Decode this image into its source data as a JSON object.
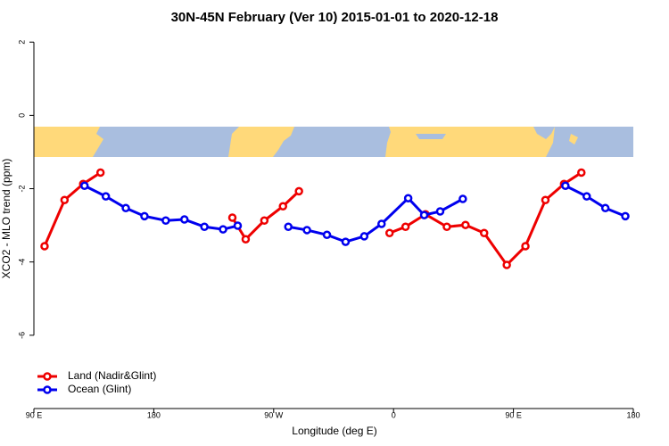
{
  "chart_data": {
    "type": "line",
    "title": "30N-45N February (Ver 10)   2015-01-01 to 2020-12-18",
    "xlabel": "Longitude (deg E)",
    "ylabel": "XCO2 - MLO trend (ppm)",
    "xlim": [
      90,
      540
    ],
    "xticks": [
      {
        "value": 90,
        "label": "90 E"
      },
      {
        "value": 180,
        "label": "180"
      },
      {
        "value": 270,
        "label": "90 W"
      },
      {
        "value": 360,
        "label": "0"
      },
      {
        "value": 450,
        "label": "90 E"
      },
      {
        "value": 540,
        "label": "180"
      }
    ],
    "ylim": [
      -8,
      2.2
    ],
    "yticks": [
      2,
      0,
      -2,
      -4,
      -6
    ],
    "legend": "bottom-left",
    "series": [
      {
        "name": "Land (Nadir&Glint)",
        "color": "#ee0000",
        "x": [
          98,
          113,
          127,
          140,
          190,
          239,
          249,
          263,
          277,
          289,
          320,
          357,
          369,
          384,
          400,
          414,
          428,
          445,
          459,
          474,
          488,
          501
        ],
        "values": [
          -3.57,
          -2.31,
          -1.87,
          -1.56,
          null,
          -2.79,
          -3.38,
          -2.87,
          -2.48,
          -2.07,
          null,
          -3.21,
          -3.04,
          -2.7,
          -3.04,
          -2.99,
          -3.21,
          -4.08,
          -3.57,
          -2.31,
          -1.87,
          -1.56
        ]
      },
      {
        "name": "Ocean (Glint)",
        "color": "#0000ee",
        "x": [
          128,
          144,
          159,
          173,
          189,
          203,
          218,
          232,
          243,
          262,
          281,
          295,
          310,
          324,
          338,
          351,
          371,
          383,
          395,
          412,
          450,
          489,
          505,
          519,
          534
        ],
        "values": [
          -1.92,
          -2.21,
          -2.53,
          -2.75,
          -2.87,
          -2.84,
          -3.04,
          -3.11,
          -3.01,
          null,
          -3.04,
          -3.13,
          -3.26,
          -3.45,
          -3.3,
          -2.96,
          -2.26,
          -2.72,
          -2.62,
          -2.28,
          null,
          -1.92,
          -2.21,
          -2.53,
          -2.75
        ]
      }
    ]
  }
}
